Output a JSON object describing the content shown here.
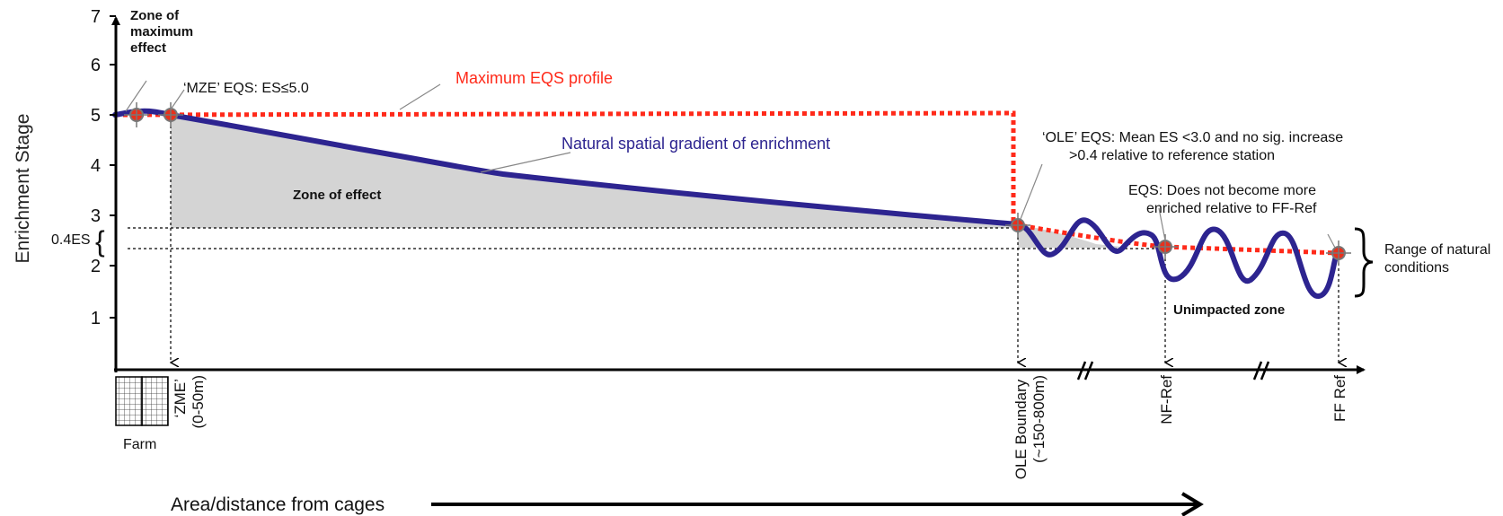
{
  "diagram": {
    "y_axis_title": "Enrichment Stage",
    "y_ticks": [
      "1",
      "2",
      "3",
      "4",
      "5",
      "6",
      "7"
    ],
    "x_axis_title": "Area/distance from cages",
    "gap_label": "0.4ES",
    "labels": {
      "zone_max_effect": [
        "Zone of",
        "maximum",
        "effect"
      ],
      "mze_eqs": "‘MZE’ EQS: ES≤5.0",
      "max_eqs_profile": "Maximum EQS profile",
      "natural_gradient": "Natural spatial gradient of enrichment",
      "zone_of_effect": "Zone of effect",
      "ole_eqs": [
        "‘OLE’ EQS: Mean ES <3.0 and no sig. increase",
        ">0.4 relative to reference station"
      ],
      "eqs_ff": [
        "EQS: Does not become more",
        "enriched relative to FF-Ref"
      ],
      "range_natural": [
        "Range of natural",
        "conditions"
      ],
      "unimpacted_zone": "Unimpacted zone",
      "farm": "Farm",
      "zme_axis": [
        "‘ZME’",
        "(0-50m)"
      ],
      "ole_boundary": [
        "OLE Boundary",
        "(~150-800m)"
      ],
      "nf_ref": "NF-Ref",
      "ff_ref": "FF Ref"
    },
    "colors": {
      "profile_line": "#ff2a1a",
      "gradient_line": "#2d2490",
      "zone_fill": "#d4d4d4",
      "marker": "#e8301c"
    }
  }
}
